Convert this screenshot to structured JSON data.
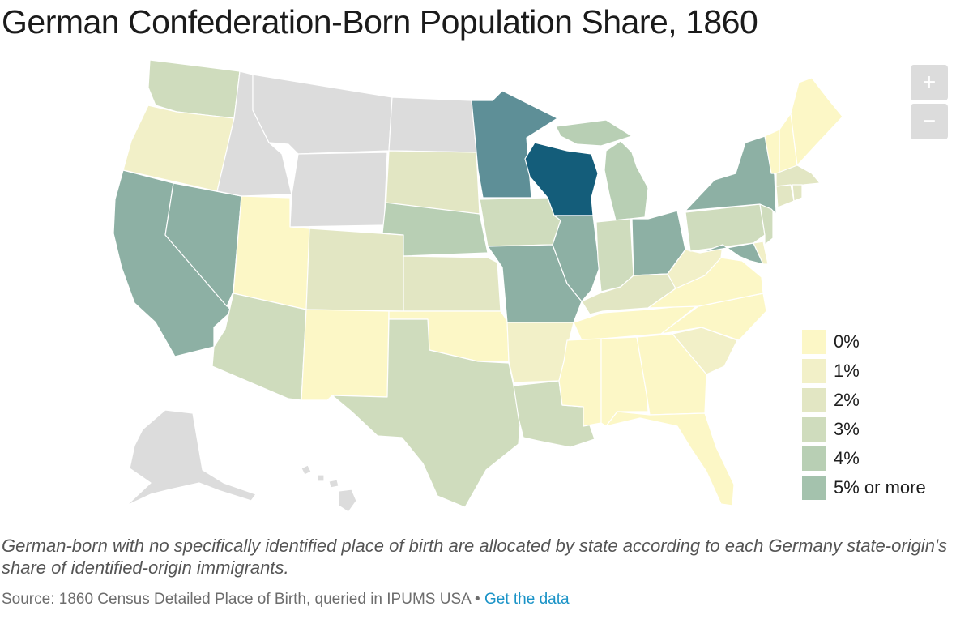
{
  "title": "German Confederation-Born Population Share, 1860",
  "controls": {
    "zoom_in": "+",
    "zoom_out": "−"
  },
  "legend": {
    "items": [
      {
        "label": "0%",
        "color": "#fcf7c6"
      },
      {
        "label": "1%",
        "color": "#f2f0c8"
      },
      {
        "label": "2%",
        "color": "#e2e6c3"
      },
      {
        "label": "3%",
        "color": "#cfdcbd"
      },
      {
        "label": "4%",
        "color": "#b8cfb4"
      },
      {
        "label": "5% or more",
        "color": "#a4c2ad"
      }
    ]
  },
  "colors": {
    "no_data": "#dcdcdc",
    "high_1": "#8db0a4",
    "high_2": "#5e8f97",
    "max": "#145d7a",
    "link": "#1a93c7"
  },
  "note": "German-born with no specifically identified place of birth are allocated by state according to each Germany state-origin's share of identified-origin immigrants.",
  "source": {
    "text": "Source: 1860 Census Detailed Place of Birth, queried in IPUMS USA • ",
    "link_label": "Get the data"
  }
}
